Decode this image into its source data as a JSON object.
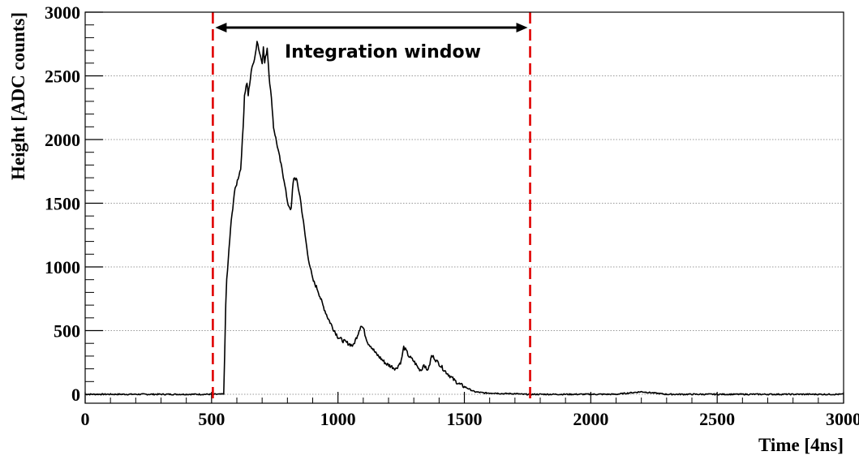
{
  "chart_data": {
    "type": "line",
    "title": "",
    "xlabel": "Time [4ns]",
    "ylabel": "Height [ADC counts]",
    "xlim": [
      0,
      3000
    ],
    "ylim": [
      -70,
      3000
    ],
    "x_ticks": [
      0,
      500,
      1000,
      1500,
      2000,
      2500,
      3000
    ],
    "x_tick_labels": [
      "0",
      "500",
      "1000",
      "1500",
      "2000",
      "2500",
      "3000"
    ],
    "y_ticks": [
      0,
      500,
      1000,
      1500,
      2000,
      2500,
      3000
    ],
    "y_tick_labels": [
      "0",
      "500",
      "1000",
      "1500",
      "2000",
      "2500",
      "3000"
    ],
    "grid": "horizontal dotted",
    "colors": {
      "waveform": "#000000",
      "markers": "#e00000",
      "grid": "#999999"
    },
    "series": [
      {
        "x": [
          0,
          100,
          200,
          300,
          400,
          500,
          540,
          548,
          552,
          556,
          560,
          566,
          575,
          590,
          605,
          615,
          625,
          630,
          640,
          645,
          650,
          660,
          670,
          680,
          690,
          700,
          705,
          710,
          720,
          725,
          730,
          740,
          745,
          760,
          775,
          790,
          800,
          815,
          820,
          825,
          835,
          840,
          850,
          860,
          870,
          880,
          890,
          900,
          920,
          940,
          960,
          980,
          1000,
          1020,
          1040,
          1060,
          1080,
          1090,
          1100,
          1110,
          1120,
          1130,
          1150,
          1170,
          1190,
          1210,
          1230,
          1250,
          1260,
          1270,
          1280,
          1290,
          1300,
          1320,
          1330,
          1340,
          1350,
          1360,
          1370,
          1380,
          1390,
          1400,
          1420,
          1440,
          1460,
          1480,
          1500,
          1520,
          1540,
          1560,
          1580,
          1600,
          1620,
          1650,
          1680,
          1700,
          1730,
          1760,
          1800,
          1900,
          2000,
          2100,
          2200,
          2250,
          2300,
          2400,
          2500,
          2600,
          2700,
          2800,
          2900,
          3000
        ],
        "y": [
          0,
          0,
          0,
          0,
          0,
          0,
          0,
          5,
          300,
          700,
          900,
          1050,
          1300,
          1580,
          1700,
          1770,
          2100,
          2350,
          2450,
          2350,
          2420,
          2580,
          2620,
          2780,
          2680,
          2610,
          2720,
          2600,
          2720,
          2580,
          2450,
          2250,
          2100,
          1950,
          1800,
          1650,
          1500,
          1450,
          1600,
          1700,
          1690,
          1650,
          1550,
          1400,
          1250,
          1100,
          1000,
          900,
          820,
          700,
          600,
          520,
          450,
          420,
          400,
          380,
          480,
          540,
          520,
          450,
          400,
          380,
          320,
          280,
          240,
          220,
          200,
          260,
          370,
          340,
          300,
          280,
          260,
          200,
          190,
          240,
          190,
          210,
          300,
          290,
          260,
          240,
          190,
          150,
          110,
          80,
          60,
          40,
          20,
          15,
          10,
          10,
          10,
          5,
          5,
          5,
          0,
          0,
          0,
          0,
          0,
          0,
          20,
          10,
          0,
          0,
          0,
          0,
          0,
          0,
          0,
          0
        ]
      }
    ],
    "vertical_markers": [
      {
        "x": 505,
        "style": "dashed",
        "color": "#e00000"
      },
      {
        "x": 1760,
        "style": "dashed",
        "color": "#e00000"
      }
    ],
    "annotations": [
      {
        "text": "Integration window",
        "x_start": 505,
        "x_end": 1760,
        "arrow": "double-headed"
      }
    ]
  }
}
